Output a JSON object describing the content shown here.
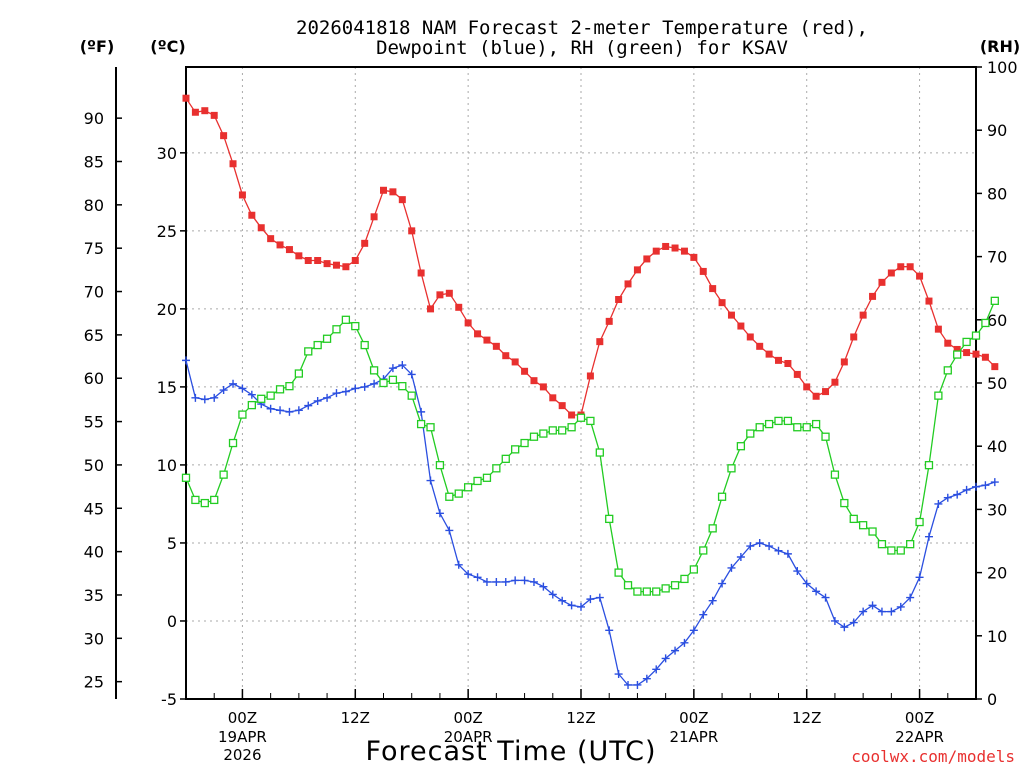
{
  "chart_data": {
    "type": "line",
    "title_line1": "2026041818 NAM Forecast 2-meter Temperature (red),",
    "title_line2": "Dewpoint (blue), RH (green) for KSAV",
    "unit_f": "(ºF)",
    "unit_c": "(ºC)",
    "unit_rh": "(RH)",
    "xlabel": "Forecast Time (UTC)",
    "credit": "coolwx.com/models",
    "x_start_hour": 18,
    "x_end_hour": 102,
    "celsius_range": [
      -5,
      35.5
    ],
    "rh_range": [
      0,
      100
    ],
    "celsius_ticks": [
      "-5",
      "0",
      "5",
      "10",
      "15",
      "20",
      "25",
      "30"
    ],
    "fahrenheit_ticks": [
      "25",
      "30",
      "35",
      "40",
      "45",
      "50",
      "55",
      "60",
      "65",
      "70",
      "75",
      "80",
      "85",
      "90"
    ],
    "rh_ticks": [
      "0",
      "10",
      "20",
      "30",
      "40",
      "50",
      "60",
      "70",
      "80",
      "90",
      "100"
    ],
    "x_ticks": [
      {
        "hour": 24,
        "time": "00Z",
        "date": "19APR",
        "year": "2026"
      },
      {
        "hour": 36,
        "time": "12Z",
        "date": "",
        "year": ""
      },
      {
        "hour": 48,
        "time": "00Z",
        "date": "20APR",
        "year": ""
      },
      {
        "hour": 60,
        "time": "12Z",
        "date": "",
        "year": ""
      },
      {
        "hour": 72,
        "time": "00Z",
        "date": "21APR",
        "year": ""
      },
      {
        "hour": 84,
        "time": "12Z",
        "date": "",
        "year": ""
      },
      {
        "hour": 96,
        "time": "00Z",
        "date": "22APR",
        "year": ""
      }
    ],
    "series": [
      {
        "name": "2-meter Temperature",
        "unit": "C",
        "color": "#e8302f",
        "marker": "filled-square",
        "values": [
          33.5,
          32.6,
          32.7,
          32.4,
          31.1,
          29.3,
          27.3,
          26.0,
          25.2,
          24.5,
          24.1,
          23.8,
          23.4,
          23.1,
          23.1,
          22.9,
          22.8,
          22.7,
          23.1,
          24.2,
          25.9,
          27.6,
          27.5,
          27.0,
          25.0,
          22.3,
          20.0,
          20.9,
          21.0,
          20.1,
          19.1,
          18.4,
          18.0,
          17.6,
          17.0,
          16.6,
          16.0,
          15.4,
          15.0,
          14.3,
          13.8,
          13.2,
          13.2,
          15.7,
          17.9,
          19.2,
          20.6,
          21.6,
          22.5,
          23.2,
          23.7,
          24.0,
          23.9,
          23.7,
          23.3,
          22.4,
          21.3,
          20.4,
          19.6,
          18.9,
          18.2,
          17.6,
          17.1,
          16.7,
          16.5,
          15.8,
          15.0,
          14.4,
          14.7,
          15.3,
          16.6,
          18.2,
          19.6,
          20.8,
          21.7,
          22.3,
          22.7,
          22.7,
          22.1,
          20.5,
          18.7,
          17.8,
          17.4,
          17.2,
          17.1,
          16.9,
          16.3
        ]
      },
      {
        "name": "Dewpoint",
        "unit": "C",
        "color": "#2b4fe0",
        "marker": "plus",
        "values": [
          16.7,
          14.3,
          14.2,
          14.3,
          14.8,
          15.2,
          14.9,
          14.5,
          13.9,
          13.6,
          13.5,
          13.4,
          13.5,
          13.8,
          14.1,
          14.3,
          14.6,
          14.7,
          14.9,
          15.0,
          15.2,
          15.5,
          16.2,
          16.4,
          15.8,
          13.4,
          9.0,
          6.9,
          5.8,
          3.6,
          3.0,
          2.8,
          2.5,
          2.5,
          2.5,
          2.6,
          2.6,
          2.5,
          2.2,
          1.7,
          1.3,
          1.0,
          0.9,
          1.4,
          1.5,
          -0.6,
          -3.4,
          -4.1,
          -4.1,
          -3.7,
          -3.1,
          -2.4,
          -1.9,
          -1.4,
          -0.6,
          0.4,
          1.3,
          2.4,
          3.4,
          4.1,
          4.8,
          5.0,
          4.8,
          4.5,
          4.3,
          3.2,
          2.4,
          1.9,
          1.5,
          0.0,
          -0.4,
          -0.1,
          0.6,
          1.0,
          0.6,
          0.6,
          0.9,
          1.5,
          2.8,
          5.4,
          7.5,
          7.9,
          8.1,
          8.4,
          8.6,
          8.7,
          8.9
        ]
      },
      {
        "name": "RH",
        "unit": "%",
        "color": "#22cc22",
        "marker": "open-square",
        "values": [
          35,
          31.5,
          31,
          31.5,
          35.5,
          40.5,
          45,
          46.5,
          47.5,
          48,
          49,
          49.5,
          51.5,
          55,
          56,
          57,
          58.5,
          60,
          59,
          56,
          52,
          50,
          50.5,
          49.5,
          48,
          43.5,
          43,
          37,
          32,
          32.5,
          33.5,
          34.5,
          35,
          36.5,
          38,
          39.5,
          40.5,
          41.5,
          42,
          42.5,
          42.5,
          43,
          44.5,
          44,
          39,
          28.5,
          20,
          18,
          17,
          17,
          17,
          17.5,
          18,
          19,
          20.5,
          23.5,
          27,
          32,
          36.5,
          40,
          42,
          43,
          43.5,
          44,
          44,
          43,
          43,
          43.5,
          41.5,
          35.5,
          31,
          28.5,
          27.5,
          26.5,
          24.5,
          23.5,
          23.5,
          24.5,
          28,
          37,
          48,
          52,
          54.5,
          56.5,
          57.5,
          59.5,
          63
        ]
      }
    ]
  }
}
